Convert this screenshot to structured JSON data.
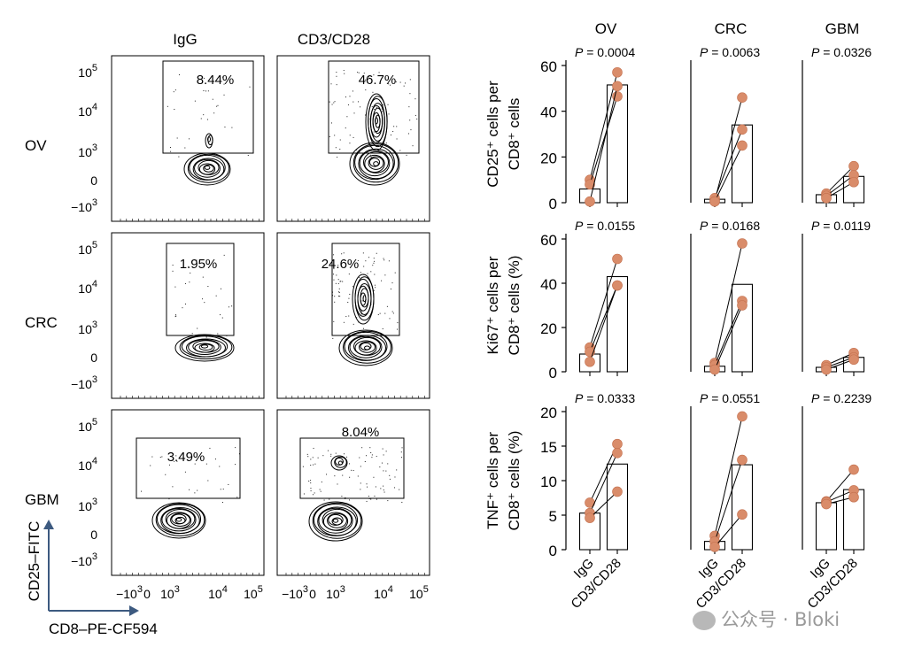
{
  "flow": {
    "col_titles": [
      "IgG",
      "CD3/CD28"
    ],
    "row_labels": [
      "OV",
      "CRC",
      "GBM"
    ],
    "gate_percents": [
      [
        "8.44%",
        "46.7%"
      ],
      [
        "1.95%",
        "24.6%"
      ],
      [
        "3.49%",
        "8.04%"
      ]
    ],
    "y_ticks": [
      "10",
      "10",
      "10",
      "0",
      "−10"
    ],
    "y_tick_exps": [
      "5",
      "4",
      "3",
      "",
      "3"
    ],
    "x_ticks_base": [
      "−10",
      "0",
      "10",
      "10",
      "10"
    ],
    "x_ticks_exp": [
      "3",
      "",
      "3",
      "4",
      "5"
    ],
    "y_axis_label": "CD25–FITC",
    "x_axis_label": "CD8–PE-CF594",
    "axis_arrow_color": "#3d5a80"
  },
  "chart_data": [
    {
      "type": "bar",
      "row": "CD25",
      "tumor": "OV",
      "title": "OV",
      "p_value": "P = 0.0004",
      "categories": [
        "IgG",
        "CD3/CD28"
      ],
      "values": [
        6,
        51.5
      ],
      "pairs": [
        [
          10,
          57
        ],
        [
          8,
          46.5
        ],
        [
          0.5,
          51
        ]
      ],
      "ylim": [
        0,
        60
      ],
      "yticks": [
        0,
        20,
        40,
        60
      ],
      "ylabel": "CD25⁺ cells per CD8⁺ cells"
    },
    {
      "type": "bar",
      "row": "CD25",
      "tumor": "CRC",
      "title": "CRC",
      "p_value": "P = 0.0063",
      "categories": [
        "IgG",
        "CD3/CD28"
      ],
      "values": [
        1.5,
        34
      ],
      "pairs": [
        [
          1,
          46
        ],
        [
          2,
          32
        ],
        [
          0.5,
          25
        ]
      ],
      "ylim": [
        0,
        60
      ]
    },
    {
      "type": "bar",
      "row": "CD25",
      "tumor": "GBM",
      "title": "GBM",
      "p_value": "P = 0.0326",
      "categories": [
        "IgG",
        "CD3/CD28"
      ],
      "values": [
        3.5,
        11.5
      ],
      "pairs": [
        [
          4,
          16
        ],
        [
          3,
          12
        ],
        [
          2,
          9
        ]
      ],
      "ylim": [
        0,
        60
      ]
    },
    {
      "type": "bar",
      "row": "Ki67",
      "tumor": "OV",
      "p_value": "P = 0.0155",
      "categories": [
        "IgG",
        "CD3/CD28"
      ],
      "values": [
        8,
        43
      ],
      "pairs": [
        [
          11,
          51
        ],
        [
          9,
          39
        ],
        [
          4.5,
          39
        ]
      ],
      "ylim": [
        0,
        60
      ],
      "yticks": [
        0,
        20,
        40,
        60
      ],
      "ylabel": "Ki67⁺ cells per CD8⁺ cells (%)"
    },
    {
      "type": "bar",
      "row": "Ki67",
      "tumor": "CRC",
      "p_value": "P = 0.0168",
      "categories": [
        "IgG",
        "CD3/CD28"
      ],
      "values": [
        2.5,
        39.5
      ],
      "pairs": [
        [
          4,
          58
        ],
        [
          3,
          32
        ],
        [
          1,
          30
        ]
      ],
      "ylim": [
        0,
        60
      ]
    },
    {
      "type": "bar",
      "row": "Ki67",
      "tumor": "GBM",
      "p_value": "P = 0.0119",
      "categories": [
        "IgG",
        "CD3/CD28"
      ],
      "values": [
        2,
        6.5
      ],
      "pairs": [
        [
          3,
          8.5
        ],
        [
          2,
          6.5
        ],
        [
          1,
          5.5
        ]
      ],
      "ylim": [
        0,
        60
      ]
    },
    {
      "type": "bar",
      "row": "TNF",
      "tumor": "OV",
      "p_value": "P = 0.0333",
      "categories": [
        "IgG",
        "CD3/CD28"
      ],
      "values": [
        5.3,
        12.4
      ],
      "pairs": [
        [
          6.8,
          15.3
        ],
        [
          5.3,
          14
        ],
        [
          4.6,
          8.4
        ]
      ],
      "ylim": [
        0,
        20
      ],
      "yticks": [
        0,
        5,
        10,
        15,
        20
      ],
      "ylabel": "TNF⁺ cells per CD8⁺ cells (%)"
    },
    {
      "type": "bar",
      "row": "TNF",
      "tumor": "CRC",
      "p_value": "P = 0.0551",
      "categories": [
        "IgG",
        "CD3/CD28"
      ],
      "values": [
        1.2,
        12.3
      ],
      "pairs": [
        [
          2,
          19.3
        ],
        [
          1.2,
          13
        ],
        [
          0.4,
          5.1
        ]
      ],
      "ylim": [
        0,
        20
      ]
    },
    {
      "type": "bar",
      "row": "TNF",
      "tumor": "GBM",
      "p_value": "P = 0.2239",
      "categories": [
        "IgG",
        "CD3/CD28"
      ],
      "values": [
        6.8,
        8.7
      ],
      "pairs": [
        [
          7,
          11.6
        ],
        [
          6.9,
          8.6
        ],
        [
          6.6,
          7.6
        ]
      ],
      "ylim": [
        0,
        20
      ]
    }
  ],
  "bar_colors": {
    "dot": "#d98c6a",
    "dot_edge": "#c4714f",
    "bar_fill": "#ffffff",
    "line": "#000000"
  },
  "x_cat_labels": [
    "IgG",
    "CD3/CD28"
  ],
  "watermark": {
    "text": "公众号 · Bloki"
  }
}
